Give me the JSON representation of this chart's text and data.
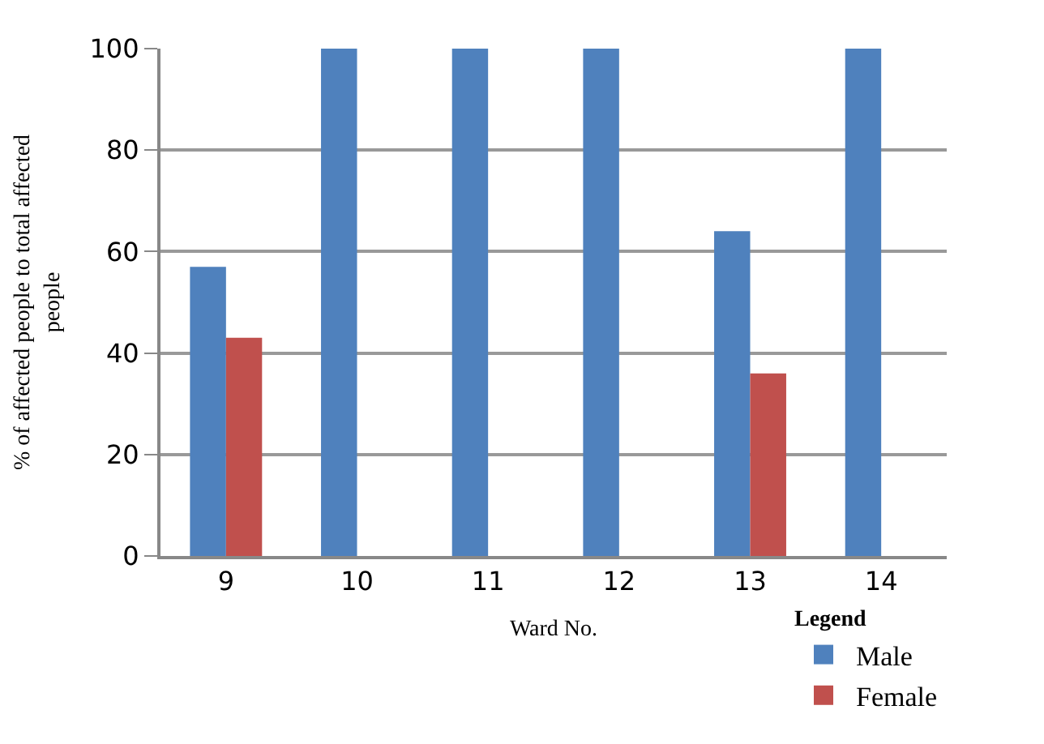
{
  "chart_data": {
    "type": "bar",
    "xlabel": "Ward No.",
    "ylabel": "% of affected people to total affected people",
    "legend_title": "Legend",
    "categories": [
      "9",
      "10",
      "11",
      "12",
      "13",
      "14"
    ],
    "series": [
      {
        "name": "Male",
        "color": "#4f81bd",
        "values": [
          57,
          100,
          100,
          100,
          64,
          100
        ]
      },
      {
        "name": "Female",
        "color": "#c0504d",
        "values": [
          43,
          0,
          0,
          0,
          36,
          0
        ]
      }
    ],
    "ylim": [
      0,
      100
    ],
    "yticks": [
      0,
      20,
      40,
      60,
      80,
      100
    ],
    "grid": "y",
    "legend": "bottom right"
  }
}
